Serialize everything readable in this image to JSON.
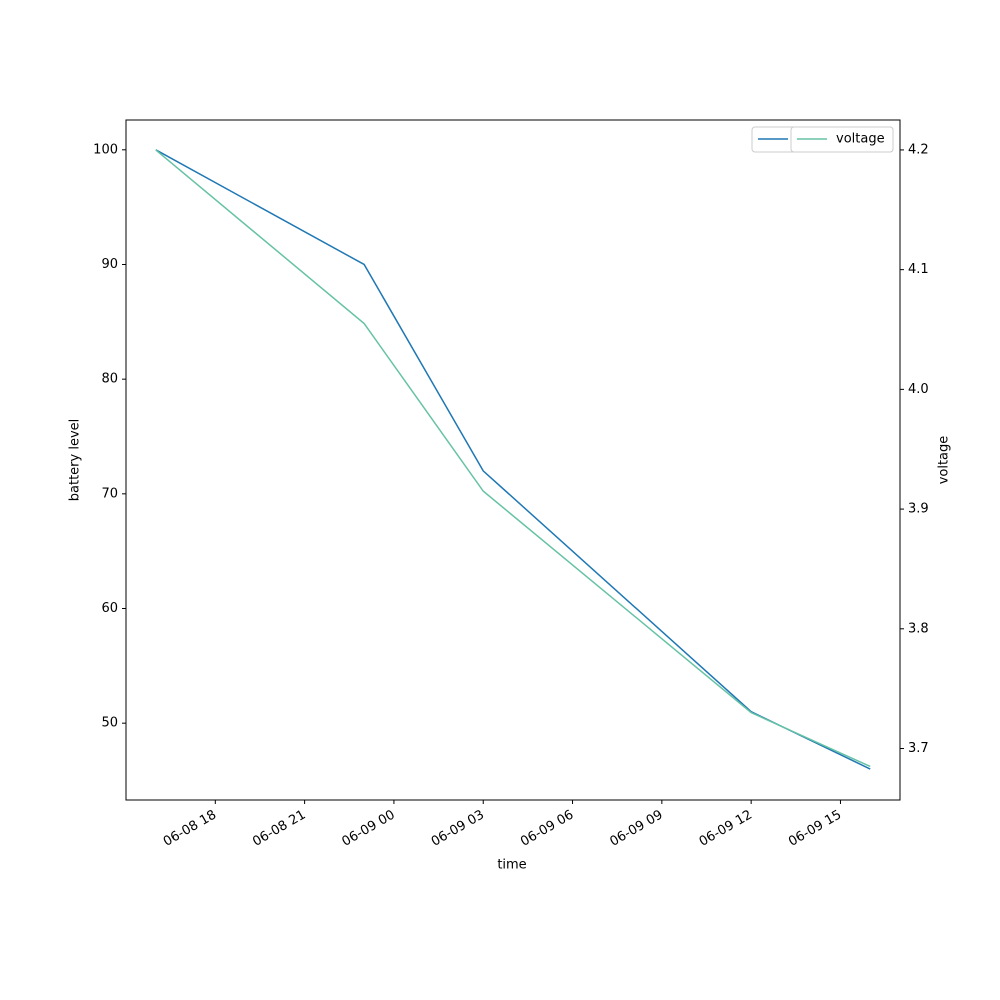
{
  "chart_data": {
    "type": "line",
    "x": [
      "06-08 16",
      "06-08 23",
      "06-09 03",
      "06-09 12",
      "06-09 16"
    ],
    "series": [
      {
        "name": "battery level",
        "color": "#1f77b4",
        "values": [
          100,
          90,
          72,
          51,
          46
        ]
      },
      {
        "name": "voltage",
        "color": "#66c2a5",
        "axis": "y2",
        "values": [
          4.2,
          4.055,
          3.915,
          3.73,
          3.685
        ]
      }
    ],
    "xlabel": "time",
    "ylabel": "battery level",
    "y2label": "voltage",
    "xlim": [
      "06-08 15",
      "06-09 17"
    ],
    "xticks": [
      "06-08 18",
      "06-08 21",
      "06-09 00",
      "06-09 03",
      "06-09 06",
      "06-09 09",
      "06-09 12",
      "06-09 15"
    ],
    "ylim": [
      43.3,
      102.6
    ],
    "yticks": [
      50,
      60,
      70,
      80,
      90,
      100
    ],
    "y2lim": [
      3.657,
      4.225
    ],
    "y2ticks": [
      3.7,
      3.8,
      3.9,
      {
        "value": 4.0,
        "label": "4.0"
      },
      4.1,
      4.2
    ],
    "legend": "upper right",
    "grid": false
  }
}
